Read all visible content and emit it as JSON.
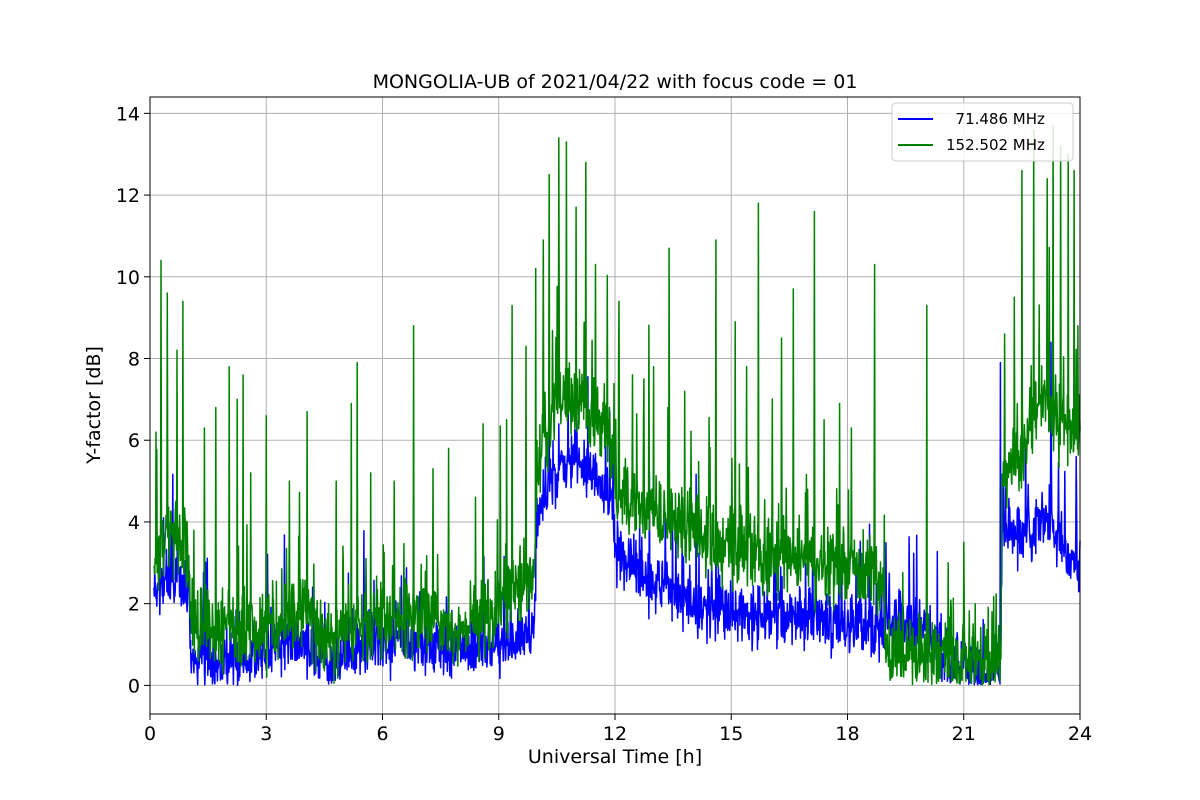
{
  "chart_data": {
    "type": "line",
    "title": "MONGOLIA-UB of 2021/04/22 with focus code = 01",
    "xlabel": "Universal Time [h]",
    "ylabel": "Y-factor [dB]",
    "xlim": [
      0,
      24
    ],
    "ylim": [
      -0.7,
      14.4
    ],
    "xticks": [
      "0",
      "3",
      "6",
      "9",
      "12",
      "15",
      "18",
      "21",
      "24"
    ],
    "yticks": [
      "0",
      "2",
      "4",
      "6",
      "8",
      "10",
      "12",
      "14"
    ],
    "grid": true,
    "legend_position": "top-right",
    "series": [
      {
        "name": "  71.486 MHz",
        "color": "#0000ff",
        "profile_x": [
          0.1,
          0.5,
          1.0,
          1.05,
          2.0,
          3.0,
          4.0,
          4.5,
          5.0,
          6.0,
          7.0,
          8.0,
          9.0,
          9.9,
          10.0,
          10.5,
          11.0,
          11.5,
          11.95,
          12.0,
          12.5,
          13.0,
          14.0,
          15.0,
          16.0,
          17.0,
          18.0,
          18.9,
          19.0,
          20.0,
          20.5,
          21.0,
          21.5,
          21.95,
          22.0,
          22.5,
          23.0,
          23.5,
          24.0
        ],
        "profile_y": [
          2.2,
          2.6,
          2.4,
          0.7,
          0.5,
          0.9,
          1.1,
          0.6,
          0.7,
          1.1,
          1.0,
          0.8,
          1.0,
          1.2,
          4.3,
          5.2,
          5.5,
          5.0,
          4.6,
          3.2,
          2.9,
          2.4,
          2.0,
          1.8,
          1.6,
          1.6,
          1.5,
          1.4,
          1.6,
          1.4,
          0.6,
          0.5,
          0.3,
          0.4,
          4.0,
          3.5,
          4.2,
          3.5,
          2.8
        ],
        "peaks": [
          [
            0.35,
            4.1
          ],
          [
            2.3,
            1.8
          ],
          [
            4.2,
            2.4
          ],
          [
            6.8,
            1.9
          ],
          [
            9.3,
            2.0
          ],
          [
            10.55,
            6.4
          ],
          [
            11.2,
            6.0
          ],
          [
            13.3,
            4.1
          ],
          [
            14.6,
            3.2
          ],
          [
            17.1,
            3.4
          ],
          [
            19.6,
            2.4
          ],
          [
            21.95,
            7.9
          ],
          [
            22.6,
            6.0
          ],
          [
            23.25,
            8.4
          ],
          [
            23.9,
            5.6
          ]
        ],
        "noise": 0.35,
        "seed": 7
      },
      {
        "name": "152.502 MHz",
        "color": "#008000",
        "profile_x": [
          0.1,
          0.5,
          1.0,
          1.05,
          2.0,
          3.0,
          4.0,
          4.5,
          5.0,
          6.0,
          7.0,
          8.0,
          9.0,
          9.9,
          10.0,
          10.5,
          11.0,
          11.5,
          11.95,
          12.0,
          12.5,
          13.0,
          14.0,
          15.0,
          16.0,
          17.0,
          18.0,
          18.9,
          19.0,
          20.0,
          20.5,
          21.0,
          21.5,
          21.95,
          22.0,
          22.5,
          23.0,
          23.5,
          24.0
        ],
        "profile_y": [
          3.0,
          3.8,
          3.2,
          1.6,
          1.2,
          1.5,
          1.8,
          1.1,
          1.2,
          1.7,
          1.6,
          1.4,
          1.9,
          2.6,
          5.5,
          7.0,
          7.0,
          6.5,
          5.9,
          4.6,
          4.4,
          4.2,
          3.8,
          3.3,
          3.1,
          3.1,
          2.9,
          2.6,
          0.9,
          0.7,
          0.6,
          0.6,
          0.7,
          0.8,
          5.0,
          5.8,
          7.0,
          6.5,
          6.0
        ],
        "peaks": [
          [
            0.15,
            6.2
          ],
          [
            0.28,
            10.4
          ],
          [
            0.45,
            9.6
          ],
          [
            0.7,
            8.2
          ],
          [
            0.85,
            9.4
          ],
          [
            1.4,
            6.3
          ],
          [
            1.7,
            6.8
          ],
          [
            2.05,
            7.8
          ],
          [
            2.25,
            7.0
          ],
          [
            2.4,
            7.6
          ],
          [
            2.6,
            5.2
          ],
          [
            3.0,
            6.6
          ],
          [
            3.6,
            5.0
          ],
          [
            4.05,
            6.7
          ],
          [
            4.8,
            5.0
          ],
          [
            5.2,
            6.9
          ],
          [
            5.35,
            7.9
          ],
          [
            5.7,
            5.2
          ],
          [
            6.3,
            5.0
          ],
          [
            6.8,
            8.8
          ],
          [
            7.3,
            5.3
          ],
          [
            7.7,
            5.8
          ],
          [
            8.4,
            4.6
          ],
          [
            8.6,
            6.4
          ],
          [
            9.2,
            6.5
          ],
          [
            9.35,
            9.3
          ],
          [
            9.7,
            8.3
          ],
          [
            9.95,
            10.2
          ],
          [
            10.15,
            10.9
          ],
          [
            10.3,
            12.5
          ],
          [
            10.55,
            13.4
          ],
          [
            10.75,
            13.3
          ],
          [
            11.0,
            11.7
          ],
          [
            11.25,
            12.8
          ],
          [
            11.5,
            10.3
          ],
          [
            12.1,
            9.4
          ],
          [
            12.45,
            7.6
          ],
          [
            12.75,
            7.5
          ],
          [
            13.0,
            7.8
          ],
          [
            13.4,
            10.7
          ],
          [
            13.8,
            7.2
          ],
          [
            14.6,
            10.9
          ],
          [
            15.1,
            8.9
          ],
          [
            15.4,
            7.8
          ],
          [
            15.7,
            11.8
          ],
          [
            16.3,
            8.5
          ],
          [
            16.6,
            9.7
          ],
          [
            17.15,
            11.6
          ],
          [
            17.4,
            6.5
          ],
          [
            17.8,
            6.9
          ],
          [
            18.1,
            6.3
          ],
          [
            18.7,
            10.3
          ],
          [
            20.05,
            9.3
          ],
          [
            20.6,
            3.0
          ],
          [
            21.0,
            3.5
          ],
          [
            21.3,
            2.0
          ],
          [
            22.05,
            8.6
          ],
          [
            22.3,
            9.5
          ],
          [
            22.5,
            12.6
          ],
          [
            22.8,
            13.6
          ],
          [
            23.15,
            12.4
          ],
          [
            23.3,
            13.7
          ],
          [
            23.5,
            13.2
          ],
          [
            23.7,
            13.0
          ],
          [
            23.85,
            12.6
          ],
          [
            23.95,
            8.8
          ]
        ],
        "noise": 0.45,
        "seed": 13
      }
    ]
  }
}
